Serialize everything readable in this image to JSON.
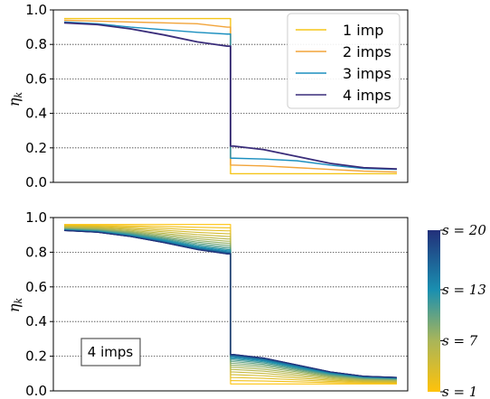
{
  "chart_data": [
    {
      "type": "line",
      "panel": "top",
      "ylabel_main": "η",
      "ylabel_sub": "k",
      "ylim": [
        0,
        1.0
      ],
      "yticks": [
        "0.0",
        "0.2",
        "0.4",
        "0.6",
        "0.8",
        "1.0"
      ],
      "grid": "horizontal dotted",
      "x": [
        0.0,
        0.1,
        0.2,
        0.3,
        0.4,
        0.49,
        0.5,
        0.51,
        0.6,
        0.7,
        0.8,
        0.9,
        1.0
      ],
      "legend_position": "top-right",
      "series": [
        {
          "name": "1 imp",
          "color": "#f5c518",
          "values": [
            0.95,
            0.95,
            0.95,
            0.95,
            0.95,
            0.95,
            null,
            0.05,
            0.05,
            0.05,
            0.05,
            0.05,
            0.05
          ]
        },
        {
          "name": "2 imps",
          "color": "#f2a43a",
          "values": [
            0.94,
            0.935,
            0.93,
            0.925,
            0.92,
            0.9,
            null,
            0.1,
            0.095,
            0.085,
            0.075,
            0.065,
            0.06
          ]
        },
        {
          "name": "3 imps",
          "color": "#1b8fbf",
          "values": [
            0.93,
            0.92,
            0.9,
            0.885,
            0.87,
            0.86,
            null,
            0.14,
            0.135,
            0.125,
            0.1,
            0.08,
            0.075
          ]
        },
        {
          "name": "4 imps",
          "color": "#3a2d7a",
          "values": [
            0.925,
            0.915,
            0.89,
            0.855,
            0.815,
            0.79,
            null,
            0.21,
            0.19,
            0.15,
            0.11,
            0.085,
            0.078
          ]
        }
      ]
    },
    {
      "type": "line",
      "panel": "bottom",
      "ylabel_main": "η",
      "ylabel_sub": "k",
      "ylim": [
        0,
        1.0
      ],
      "yticks": [
        "0.0",
        "0.2",
        "0.4",
        "0.6",
        "0.8",
        "1.0"
      ],
      "grid": "horizontal dotted",
      "annotation": "4 imps",
      "colorbar": {
        "labels": [
          "s = 20",
          "s = 13",
          "s = 7",
          "s = 1"
        ],
        "values": [
          20,
          13,
          7,
          1
        ],
        "colors": [
          "#22307a",
          "#1a8fb0",
          "#a8b55a",
          "#ffc20a"
        ]
      },
      "x": [
        0.0,
        0.1,
        0.2,
        0.3,
        0.4,
        0.49,
        0.5,
        0.51,
        0.6,
        0.7,
        0.8,
        0.9,
        1.0
      ],
      "series_family": {
        "s_min": 1,
        "s_max": 20,
        "first_values": [
          0.96,
          0.96,
          0.96,
          0.96,
          0.96,
          0.96,
          null,
          0.04,
          0.04,
          0.04,
          0.04,
          0.04,
          0.04
        ],
        "last_values": [
          0.925,
          0.915,
          0.89,
          0.855,
          0.815,
          0.79,
          null,
          0.21,
          0.19,
          0.15,
          0.11,
          0.085,
          0.078
        ]
      }
    }
  ]
}
